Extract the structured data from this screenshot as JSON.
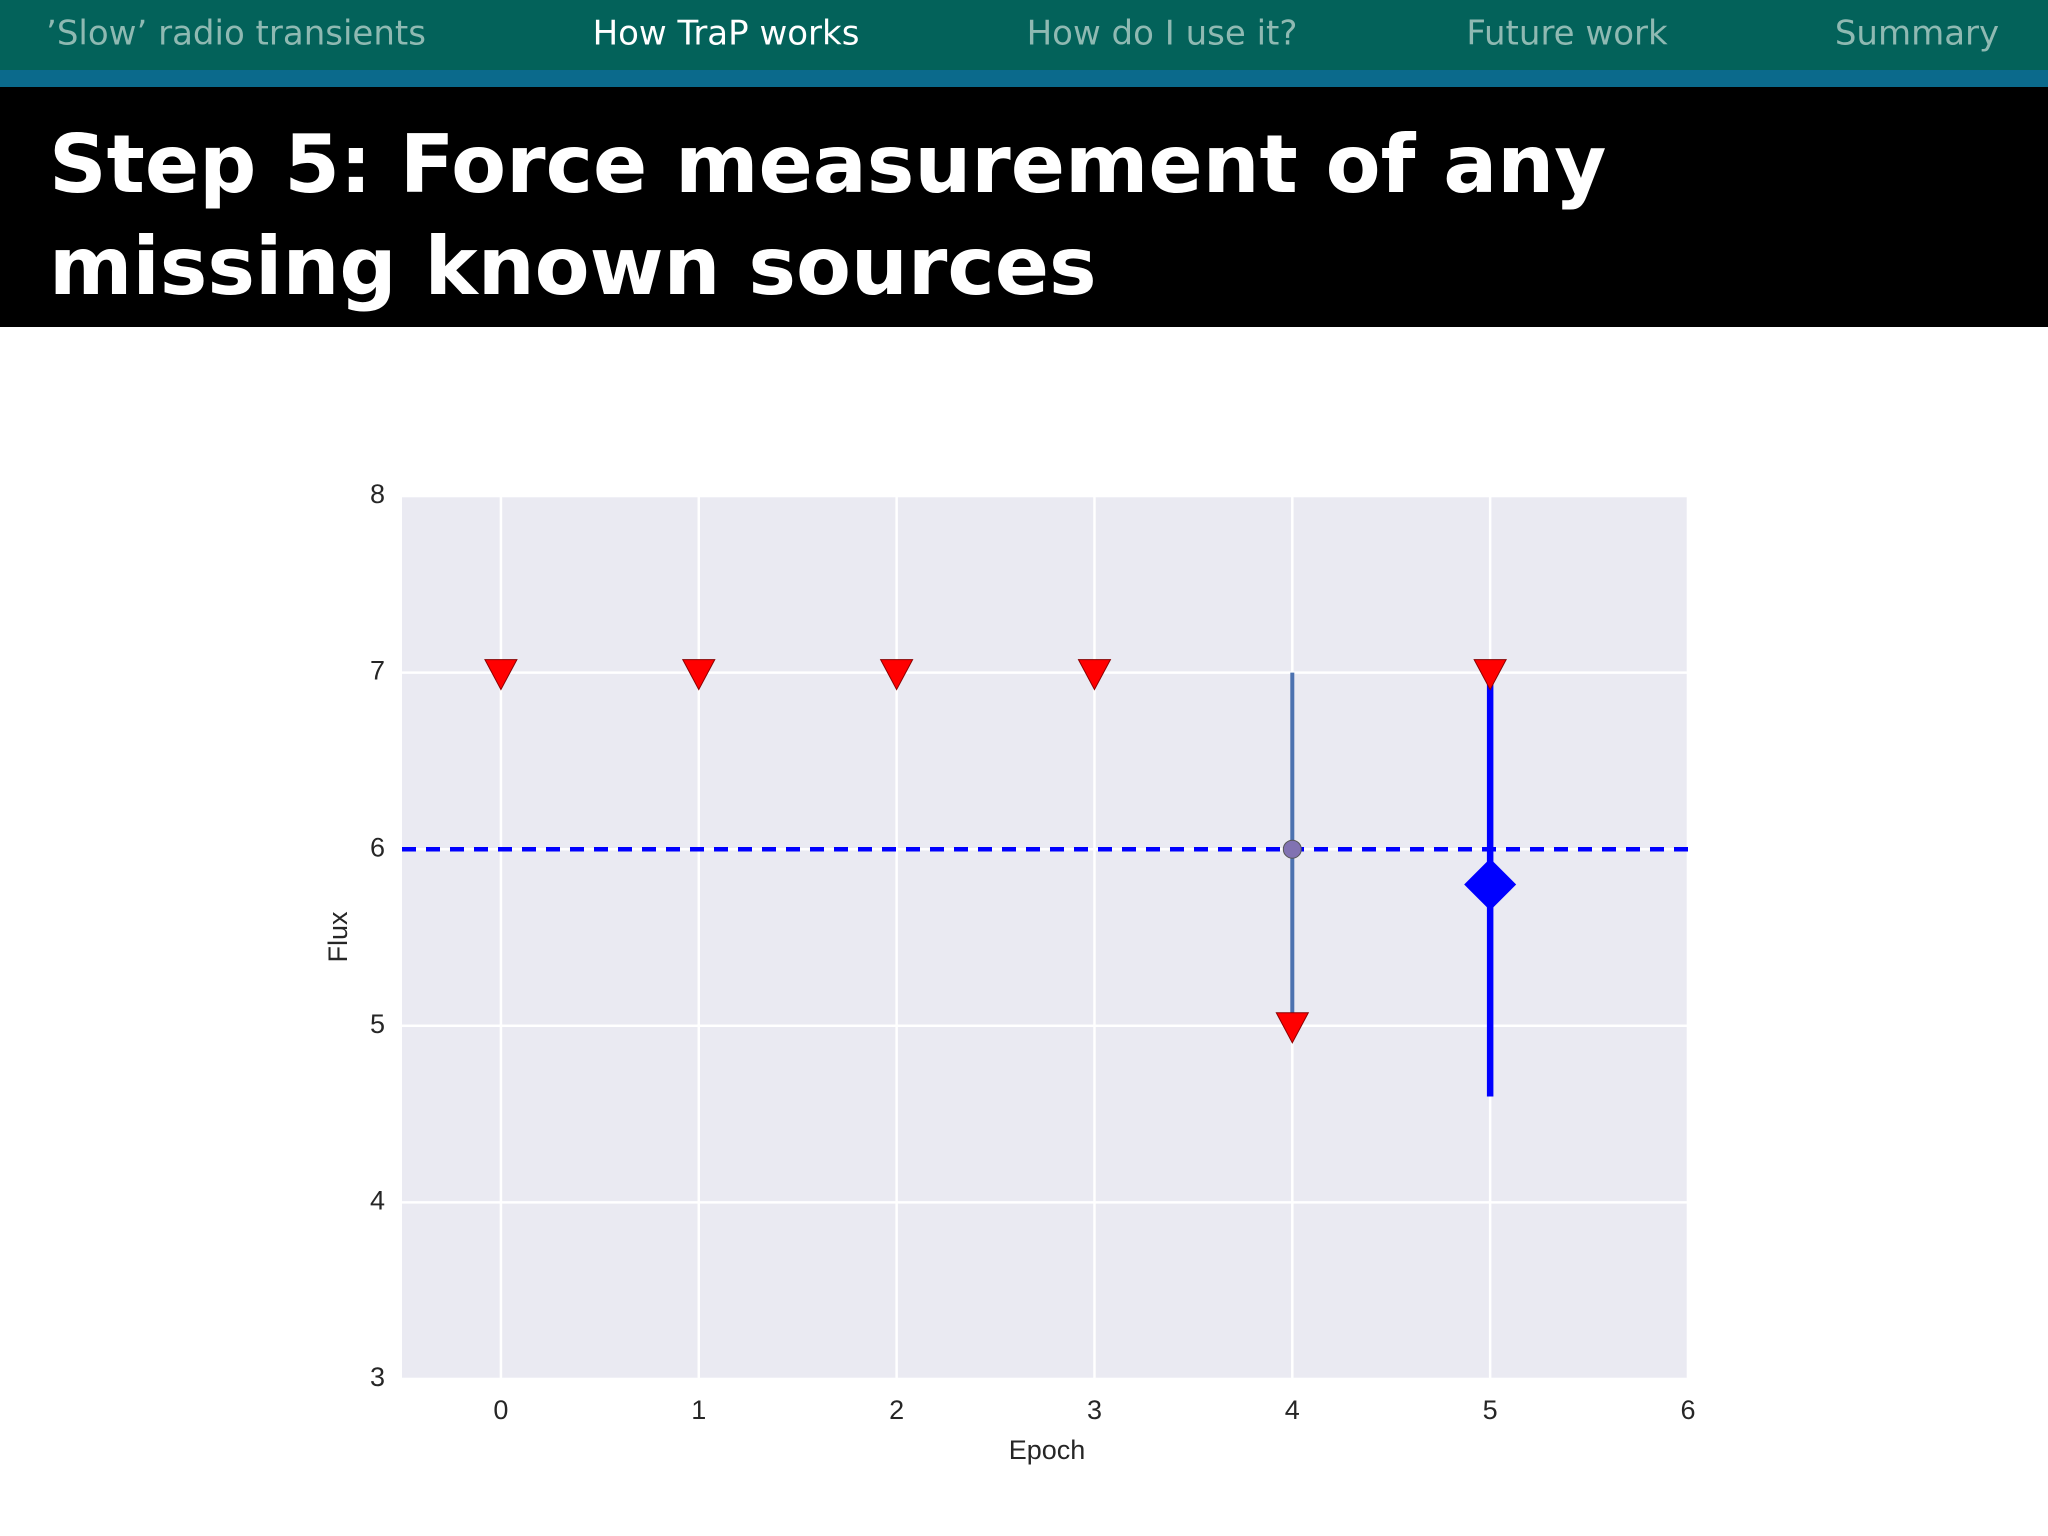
{
  "nav": {
    "items": [
      "’Slow’ radio transients",
      "How TraP works",
      "How do I use it?",
      "Future work",
      "Summary"
    ],
    "active": 1
  },
  "slide_title": [
    "Step 5: Force measurement of any",
    "missing known sources"
  ],
  "chart_data": {
    "type": "scatter",
    "xlabel": "Epoch",
    "ylabel": "Flux",
    "xlim": [
      -0.5,
      6
    ],
    "xticks": [
      0,
      1,
      2,
      3,
      4,
      5,
      6
    ],
    "ylim": [
      3,
      8
    ],
    "yticks": [
      3,
      4,
      5,
      6,
      7,
      8
    ],
    "grid": true,
    "hline": {
      "value": 6,
      "color": "#0000ff",
      "style": "dashed"
    },
    "series": [
      {
        "marker": "triangle-down",
        "color": "#ff0000",
        "x": [
          0,
          1,
          2,
          3,
          4,
          5
        ],
        "values": [
          7,
          7,
          7,
          7,
          5,
          7
        ]
      },
      {
        "marker": "circle",
        "color": "#8172b2",
        "errorbar_color": "#4c72b0",
        "x": [
          4
        ],
        "values": [
          6
        ],
        "errors": [
          1
        ]
      },
      {
        "marker": "diamond",
        "color": "#0000ff",
        "errorbar_color": "#0000ff",
        "x": [
          5
        ],
        "values": [
          5.8
        ],
        "errors": [
          1.2
        ]
      }
    ]
  }
}
